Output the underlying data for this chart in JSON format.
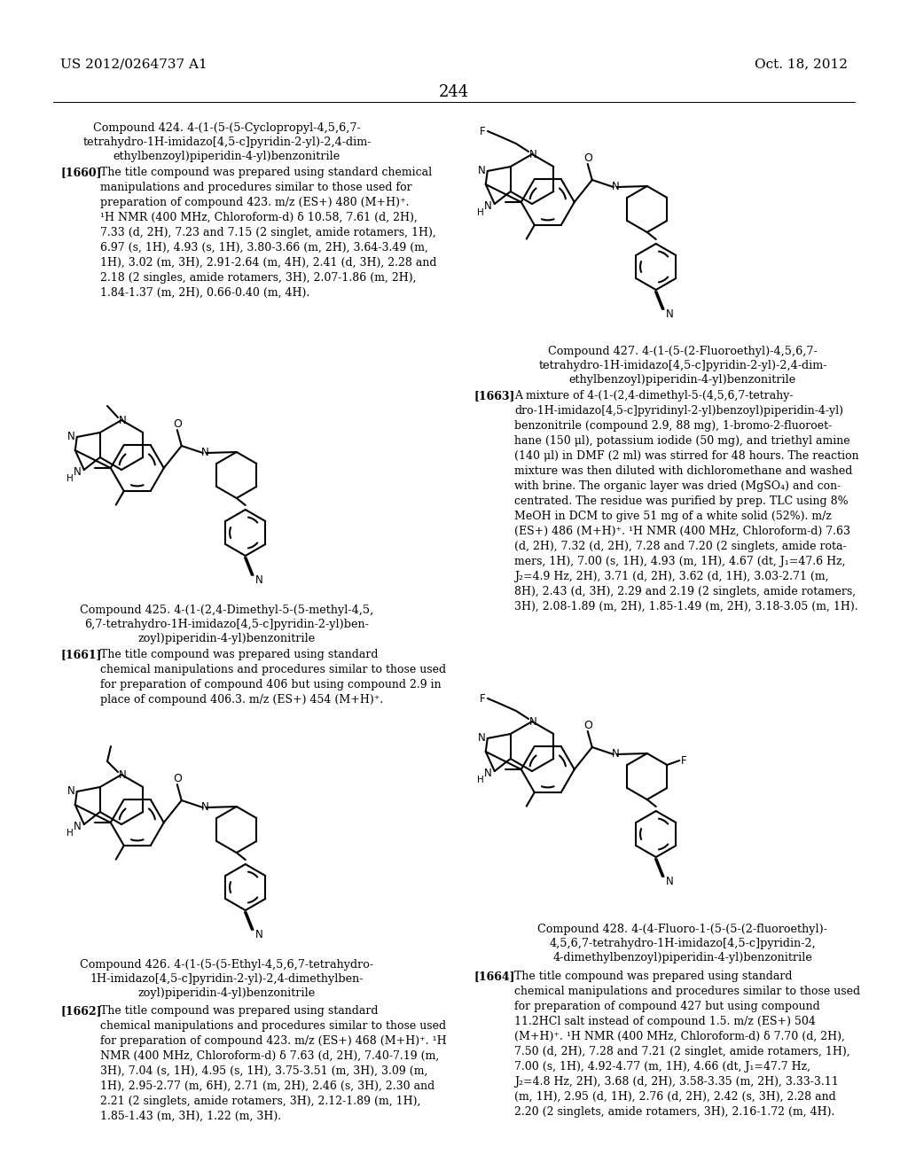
{
  "header_left": "US 2012/0264737 A1",
  "header_right": "Oct. 18, 2012",
  "page_number": "244",
  "bg_color": "#ffffff",
  "text_color": "#000000",
  "c424_title_lines": [
    "Compound 424. 4-(1-(5-(5-Cyclopropyl-4,5,6,7-",
    "tetrahydro-1H-imidazo[4,5-c]pyridin-2-yl)-2,4-dim-",
    "ethylbenzoyl)piperidin-4-yl)benzonitrile"
  ],
  "c424_ref": "[1660]",
  "c424_body": "The title compound was prepared using standard chemical manipulations and procedures similar to those used for preparation of compound 423. m/z (ES+) 480 (M+H)⁺. ¹H NMR (400 MHz, Chloroform-d) δ 10.58, 7.61 (d, 2H), 7.33 (d, 2H), 7.23 and 7.15 (2 singlet, amide rotamers, 1H), 6.97 (s, 1H), 4.93 (s, 1H), 3.80-3.66 (m, 2H), 3.64-3.49 (m, 1H), 3.02 (m, 3H), 2.91-2.64 (m, 4H), 2.41 (d, 3H), 2.28 and 2.18 (2 singles, amide rotamers, 3H), 2.07-1.86 (m, 2H), 1.84-1.37 (m, 2H), 0.66-0.40 (m, 4H).",
  "c425_title_lines": [
    "Compound 425. 4-(1-(2,4-Dimethyl-5-(5-methyl-4,5,",
    "6,7-tetrahydro-1H-imidazo[4,5-c]pyridin-2-yl)ben-",
    "zoyl)piperidin-4-yl)benzonitrile"
  ],
  "c425_ref": "[1661]",
  "c425_body": "The title compound was prepared using standard chemical manipulations and procedures similar to those used for preparation of compound 406 but using compound 2.9 in place of compound 406.3. m/z (ES+) 454 (M+H)⁺.",
  "c426_title_lines": [
    "Compound 426. 4-(1-(5-(5-Ethyl-4,5,6,7-tetrahydro-",
    "1H-imidazo[4,5-c]pyridin-2-yl)-2,4-dimethylben-",
    "zoyl)piperidin-4-yl)benzonitrile"
  ],
  "c426_ref": "[1662]",
  "c426_body": "The title compound was prepared using standard chemical manipulations and procedures similar to those used for preparation of compound 423. m/z (ES+) 468 (M+H)⁺. ¹H NMR (400 MHz, Chloroform-d) δ 7.63 (d, 2H), 7.40-7.19 (m, 3H), 7.04 (s, 1H), 4.95 (s, 1H), 3.75-3.51 (m, 3H), 3.09 (m, 1H), 2.95-2.77 (m, 6H), 2.71 (m, 2H), 2.46 (s, 3H), 2.30 and 2.21 (2 singlets, amide rotamers, 3H), 2.12-1.89 (m, 1H), 1.85-1.43 (m, 3H), 1.22 (m, 3H).",
  "c427_title_lines": [
    "Compound 427. 4-(1-(5-(2-Fluoroethyl)-4,5,6,7-",
    "tetrahydro-1H-imidazo[4,5-c]pyridin-2-yl)-2,4-dim-",
    "ethylbenzoyl)piperidin-4-yl)benzonitrile"
  ],
  "c427_ref": "[1663]",
  "c427_body": "A mixture of 4-(1-(2,4-dimethyl-5-(4,5,6,7-tetrahydro-1H-imidazo[4,5-c]pyridinyl-2-yl)benzoyl)piperidin-4-yl) benzonitrile (compound 2.9, 88 mg), 1-bromo-2-fluoroethane (150 μl), potassium iodide (50 mg), and triethyl amine (140 μl) in DMF (2 ml) was stirred for 48 hours. The reaction mixture was then diluted with dichloromethane and washed with brine. The organic layer was dried (MgSO₄) and concentrated. The residue was purified by prep. TLC using 8% MeOH in DCM to give 51 mg of a white solid (52%). m/z (ES+) 486 (M+H)⁺. ¹H NMR (400 MHz, Chloroform-d) 7.63 (d, 2H), 7.32 (d, 2H), 7.28 and 7.20 (2 singlets, amide rotamers, 1H), 7.00 (s, 1H), 4.93 (m, 1H), 4.67 (dt, J₁=47.6 Hz, J₂=4.9 Hz, 2H), 3.71 (d, 2H), 3.62 (d, 1H), 3.03-2.71 (m, 8H), 2.43 (d, 3H), 2.29 and 2.19 (2 singlets, amide rotamers, 3H), 2.08-1.89 (m, 2H), 1.85-1.49 (m, 2H), 3.18-3.05 (m, 1H).",
  "c428_title_lines": [
    "Compound 428. 4-(4-Fluoro-1-(5-(5-(2-fluoroethyl)-",
    "4,5,6,7-tetrahydro-1H-imidazo[4,5-c]pyridin-2,",
    "4-dimethylbenzoyl)piperidin-4-yl)benzonitrile"
  ],
  "c428_ref": "[1664]",
  "c428_body": "The title compound was prepared using standard chemical manipulations and procedures similar to those used for preparation of compound 427 but using compound 11.2HCl salt instead of compound 1.5. m/z (ES+) 504 (M+H)⁺. ¹H NMR (400 MHz, Chloroform-d) δ 7.70 (d, 2H), 7.50 (d, 2H), 7.28 and 7.21 (2 singlet, amide rotamers, 1H), 7.00 (s, 1H), 4.92-4.77 (m, 1H), 4.66 (dt, J₁=47.7 Hz, J₂=4.8 Hz, 2H), 3.68 (d, 2H), 3.58-3.35 (m, 2H), 3.33-3.11 (m, 1H), 2.95 (d, 1H), 2.76 (d, 2H), 2.42 (s, 3H), 2.28 and 2.20 (2 singlets, amide rotamers, 3H), 2.16-1.72 (m, 4H)."
}
